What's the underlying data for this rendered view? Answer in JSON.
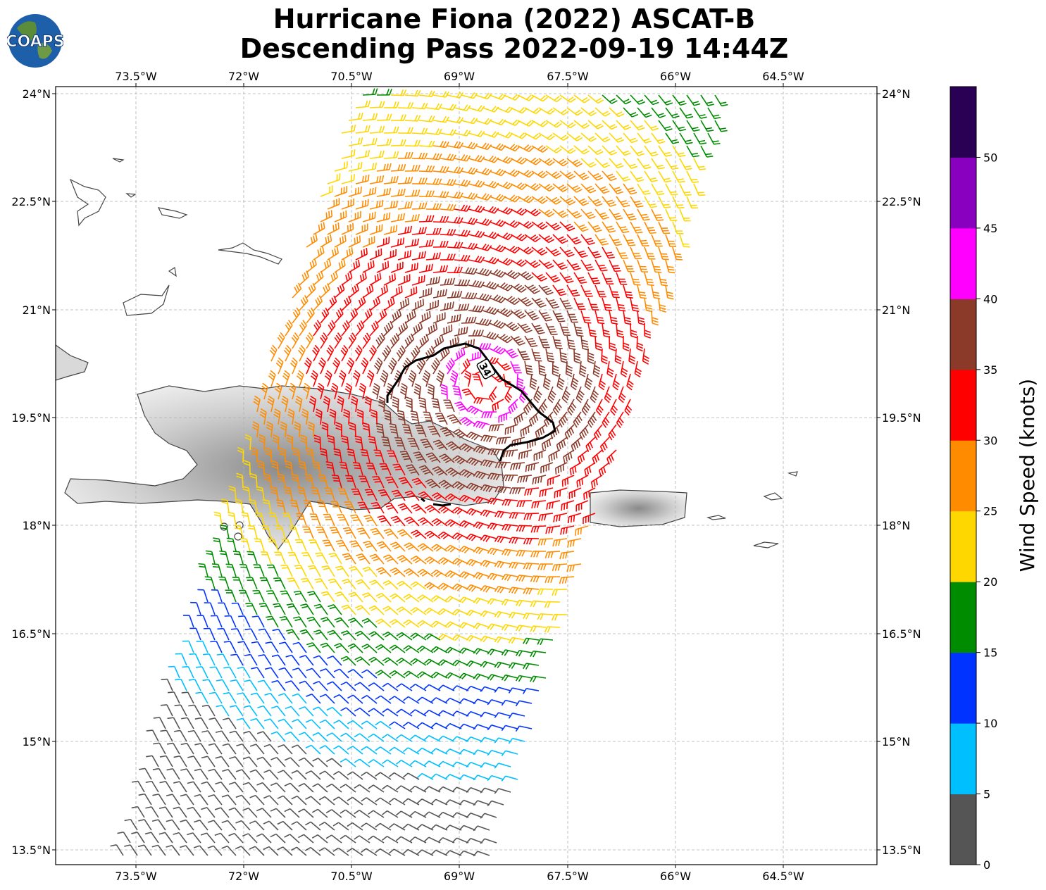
{
  "title": {
    "line1": "Hurricane Fiona (2022) ASCAT-B",
    "line2": "Descending Pass 2022-09-19 14:44Z"
  },
  "logo": {
    "text": "COAPS"
  },
  "map": {
    "lon_ticks": [
      "73.5°W",
      "72°W",
      "70.5°W",
      "69°W",
      "67.5°W",
      "66°W",
      "64.5°W"
    ],
    "lat_ticks": [
      "24°N",
      "22.5°N",
      "21°N",
      "19.5°N",
      "18°N",
      "16.5°N",
      "15°N",
      "13.5°N"
    ],
    "contour_label": "34",
    "grid": true
  },
  "colorbar": {
    "label": "Wind Speed (knots)",
    "ticks": [
      "0",
      "5",
      "10",
      "15",
      "20",
      "25",
      "30",
      "35",
      "40",
      "45",
      "50"
    ],
    "colors": [
      "#555555",
      "#00bfff",
      "#0033ff",
      "#008c00",
      "#ffd700",
      "#ff8c00",
      "#ff0000",
      "#8b3a2a",
      "#ff00ff",
      "#8a00bf",
      "#2a0055"
    ]
  }
}
